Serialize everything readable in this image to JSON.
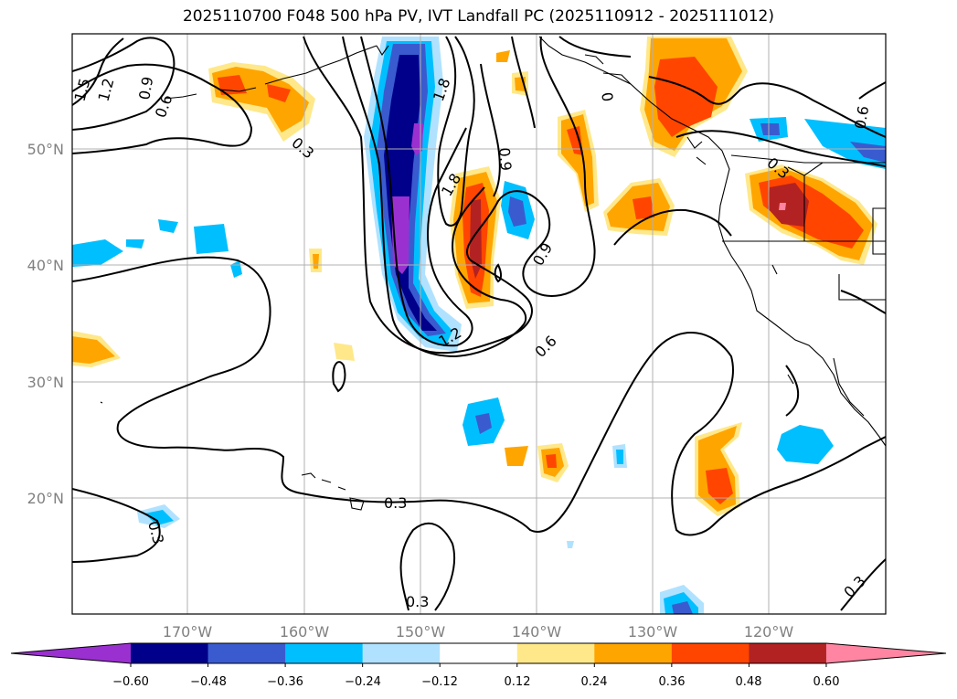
{
  "title": "2025110700 F048 500 hPa PV, IVT Landfall PC (2025110912 - 2025111012)",
  "map": {
    "lat_ticks": [
      "20°N",
      "30°N",
      "40°N",
      "50°N"
    ],
    "lon_ticks": [
      "170°W",
      "160°W",
      "150°W",
      "140°W",
      "130°W",
      "120°W"
    ],
    "contour_labels": [
      "1.5",
      "1.2",
      "0.9",
      "0.6",
      "0.3",
      "1.8",
      "1.8",
      "0.9",
      "0.9",
      "0.6",
      "1.2",
      "0.3",
      "0.3",
      "0.6",
      "0.3",
      "0.3",
      "0.3"
    ]
  },
  "colorbar": {
    "tick_labels": [
      "−0.60",
      "−0.48",
      "−0.36",
      "−0.24",
      "−0.12",
      "0.12",
      "0.24",
      "0.36",
      "0.48",
      "0.60"
    ],
    "colors": [
      "#9b30d0",
      "#00008b",
      "#3a5bcf",
      "#00bfff",
      "#b0e2ff",
      "#ffffff",
      "#ffe88a",
      "#ffa500",
      "#ff4500",
      "#b22222",
      "#ff85a2"
    ]
  }
}
